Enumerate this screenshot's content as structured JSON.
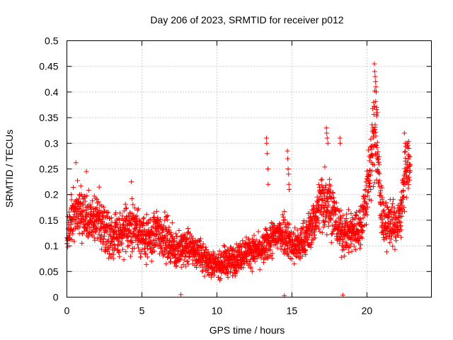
{
  "chart_data": {
    "type": "scatter",
    "title": "Day 206 of 2023, SRMTID for receiver p012",
    "xlabel": "GPS time / hours",
    "ylabel": "SRMTID / TECUs",
    "xlim": [
      0,
      24.3
    ],
    "ylim": [
      0,
      0.5
    ],
    "x_ticks": [
      0,
      5,
      10,
      15,
      20
    ],
    "x_tick_labels": [
      "0",
      "5",
      "10",
      "15",
      "20"
    ],
    "y_ticks": [
      0,
      0.05,
      0.1,
      0.15,
      0.2,
      0.25,
      0.3,
      0.35,
      0.4,
      0.45,
      0.5
    ],
    "y_tick_labels": [
      "0",
      "0.05",
      "0.1",
      "0.15",
      "0.2",
      "0.25",
      "0.3",
      "0.35",
      "0.4",
      "0.45",
      "0.5"
    ],
    "grid": true,
    "marker": "+",
    "color": "#ff0000",
    "trend": [
      [
        0.0,
        0.12,
        0.025
      ],
      [
        0.3,
        0.15,
        0.03
      ],
      [
        0.6,
        0.17,
        0.035
      ],
      [
        1.0,
        0.16,
        0.035
      ],
      [
        1.5,
        0.15,
        0.035
      ],
      [
        2.0,
        0.15,
        0.035
      ],
      [
        2.5,
        0.14,
        0.035
      ],
      [
        3.0,
        0.12,
        0.03
      ],
      [
        3.5,
        0.12,
        0.03
      ],
      [
        4.0,
        0.13,
        0.03
      ],
      [
        4.5,
        0.14,
        0.035
      ],
      [
        5.0,
        0.12,
        0.03
      ],
      [
        5.5,
        0.11,
        0.03
      ],
      [
        6.0,
        0.13,
        0.03
      ],
      [
        6.5,
        0.12,
        0.03
      ],
      [
        7.0,
        0.1,
        0.025
      ],
      [
        7.5,
        0.09,
        0.025
      ],
      [
        8.0,
        0.1,
        0.025
      ],
      [
        8.5,
        0.09,
        0.02
      ],
      [
        9.0,
        0.08,
        0.02
      ],
      [
        9.5,
        0.07,
        0.02
      ],
      [
        10.0,
        0.06,
        0.015
      ],
      [
        10.5,
        0.07,
        0.02
      ],
      [
        11.0,
        0.07,
        0.02
      ],
      [
        11.5,
        0.08,
        0.02
      ],
      [
        12.0,
        0.09,
        0.02
      ],
      [
        12.5,
        0.09,
        0.02
      ],
      [
        13.0,
        0.09,
        0.02
      ],
      [
        13.5,
        0.11,
        0.025
      ],
      [
        14.0,
        0.12,
        0.025
      ],
      [
        14.5,
        0.13,
        0.03
      ],
      [
        15.0,
        0.1,
        0.025
      ],
      [
        15.5,
        0.1,
        0.025
      ],
      [
        16.0,
        0.12,
        0.025
      ],
      [
        16.5,
        0.15,
        0.03
      ],
      [
        17.0,
        0.19,
        0.045
      ],
      [
        17.5,
        0.19,
        0.045
      ],
      [
        18.0,
        0.14,
        0.03
      ],
      [
        18.5,
        0.12,
        0.025
      ],
      [
        19.0,
        0.13,
        0.03
      ],
      [
        19.5,
        0.13,
        0.03
      ],
      [
        20.0,
        0.2,
        0.04
      ],
      [
        20.3,
        0.27,
        0.05
      ],
      [
        20.6,
        0.33,
        0.06
      ],
      [
        20.9,
        0.18,
        0.04
      ],
      [
        21.2,
        0.14,
        0.03
      ],
      [
        21.6,
        0.15,
        0.03
      ],
      [
        22.0,
        0.13,
        0.03
      ],
      [
        22.3,
        0.17,
        0.04
      ],
      [
        22.6,
        0.25,
        0.035
      ],
      [
        22.9,
        0.25,
        0.035
      ]
    ],
    "highlights": [
      [
        13.3,
        0.31
      ],
      [
        13.32,
        0.3
      ],
      [
        13.35,
        0.28
      ],
      [
        13.4,
        0.25
      ],
      [
        13.42,
        0.22
      ],
      [
        14.7,
        0.285
      ],
      [
        14.72,
        0.27
      ],
      [
        14.75,
        0.25
      ],
      [
        14.78,
        0.24
      ],
      [
        14.8,
        0.22
      ],
      [
        14.82,
        0.21
      ],
      [
        17.3,
        0.33
      ],
      [
        17.32,
        0.32
      ],
      [
        17.35,
        0.31
      ],
      [
        17.4,
        0.3
      ],
      [
        18.2,
        0.31
      ],
      [
        18.22,
        0.3
      ],
      [
        20.5,
        0.455
      ],
      [
        20.52,
        0.44
      ],
      [
        20.55,
        0.43
      ],
      [
        20.58,
        0.42
      ],
      [
        20.6,
        0.41
      ],
      [
        20.62,
        0.4
      ],
      [
        20.45,
        0.38
      ],
      [
        20.65,
        0.37
      ],
      [
        20.7,
        0.36
      ],
      [
        20.4,
        0.33
      ],
      [
        20.48,
        0.32
      ],
      [
        22.5,
        0.32
      ],
      [
        22.55,
        0.3
      ],
      [
        22.7,
        0.3
      ],
      [
        22.8,
        0.29
      ],
      [
        0.6,
        0.262
      ],
      [
        1.3,
        0.245
      ],
      [
        4.3,
        0.225
      ],
      [
        7.6,
        0.005
      ],
      [
        14.5,
        0.003
      ],
      [
        18.4,
        0.004
      ]
    ]
  }
}
